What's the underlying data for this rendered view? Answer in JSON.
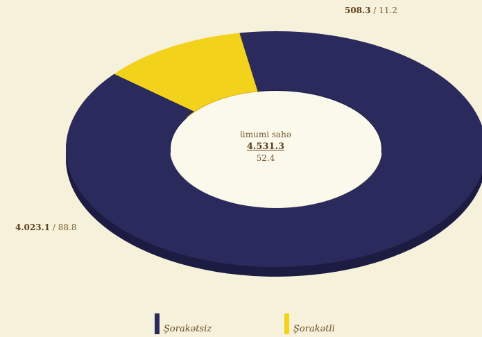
{
  "chart_data": {
    "type": "pie",
    "donut": true,
    "total": {
      "label": "ümumi sahə",
      "value": "4.531.3",
      "sub": "52.4"
    },
    "slices": [
      {
        "name": "Şorakətsiz",
        "value": 4023.1,
        "value_text": "4.023.1",
        "percent": 88.8,
        "percent_text": "88.8",
        "color": "#2b2a5c",
        "side_color": "#1d1c42"
      },
      {
        "name": "Şorakətli",
        "value": 508.3,
        "value_text": "508.3",
        "percent": 11.2,
        "percent_text": "11.2",
        "color": "#f2d21a",
        "side_color": "#d9ad14"
      }
    ],
    "legend_placement": "bottom"
  }
}
